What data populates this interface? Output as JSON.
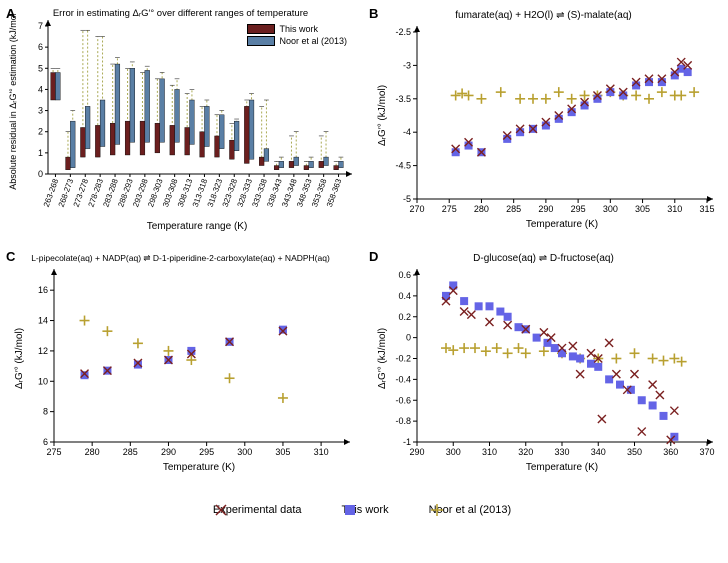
{
  "colors": {
    "this_work": "#6b1f1f",
    "noor": "#5a7fa5",
    "exp_x": "#7a1f1f",
    "this_sq": "#6464e6",
    "noor_plus": "#b8a030",
    "bg": "#ffffff",
    "axis": "#000000",
    "dash": "#aaaa55"
  },
  "fonts": {
    "title": 10,
    "panel_label": 13,
    "tick": 9,
    "axis_label": 10,
    "legend": 11
  },
  "panelA": {
    "title": "Error in estimating ΔᵣG′° over different ranges of temperature",
    "ylabel": "Absolute residual in ΔᵣG′° estimation (kJ/mol)",
    "xlabel": "Temperature range (K)",
    "categories": [
      "263-268",
      "268-273",
      "273-278",
      "278-283",
      "283-288",
      "288-293",
      "293-298",
      "298-303",
      "303-308",
      "308-313",
      "313-318",
      "318-323",
      "323-328",
      "328-333",
      "333-338",
      "338-343",
      "343-348",
      "348-353",
      "353-358",
      "358-363"
    ],
    "ylim": [
      0,
      7
    ],
    "ytick_step": 1,
    "this_work_box": {
      "q1": [
        3.5,
        0.2,
        0.8,
        0.8,
        0.9,
        0.9,
        0.9,
        1.0,
        0.9,
        0.9,
        0.8,
        0.8,
        0.7,
        0.5,
        0.4,
        0.2,
        0.3,
        0.2,
        0.3,
        0.2
      ],
      "q3": [
        4.8,
        0.8,
        2.2,
        2.3,
        2.4,
        2.5,
        2.5,
        2.4,
        2.3,
        2.2,
        2.0,
        1.8,
        1.6,
        3.2,
        0.8,
        0.4,
        0.6,
        0.4,
        0.6,
        0.4
      ],
      "whisker_hi": [
        5.0,
        2.0,
        6.8,
        6.5,
        5.2,
        5.0,
        4.8,
        4.5,
        4.2,
        3.8,
        3.2,
        2.8,
        2.4,
        3.5,
        3.2,
        0.6,
        1.8,
        0.6,
        1.8,
        0.6
      ]
    },
    "noor_box": {
      "q1": [
        3.5,
        0.3,
        1.2,
        1.3,
        1.4,
        1.5,
        1.5,
        1.5,
        1.5,
        1.4,
        1.3,
        1.2,
        1.1,
        0.7,
        0.6,
        0.3,
        0.4,
        0.3,
        0.4,
        0.3
      ],
      "q3": [
        4.8,
        2.5,
        3.2,
        3.5,
        5.2,
        5.0,
        4.9,
        4.5,
        4.0,
        3.5,
        3.2,
        2.8,
        2.5,
        3.5,
        1.2,
        0.6,
        0.8,
        0.6,
        0.8,
        0.6
      ],
      "whisker_hi": [
        5.0,
        3.0,
        6.8,
        6.5,
        5.5,
        5.3,
        5.1,
        4.8,
        4.5,
        4.0,
        3.5,
        3.0,
        2.6,
        3.8,
        3.5,
        0.8,
        2.0,
        0.8,
        2.0,
        0.8
      ]
    },
    "legend": {
      "this_work": "This work",
      "noor": "Noor et al (2013)"
    }
  },
  "panelB": {
    "title": "fumarate(aq) + H2O(l) ⇌ (S)-malate(aq)",
    "ylabel": "ΔᵣG′° (kJ/mol)",
    "xlabel": "Temperature (K)",
    "xlim": [
      270,
      315
    ],
    "xtick_step": 5,
    "ylim": [
      -5.0,
      -2.5
    ],
    "ytick_step": 0.5,
    "exp": {
      "x": [
        276,
        278,
        280,
        284,
        286,
        288,
        290,
        292,
        294,
        296,
        298,
        300,
        302,
        304,
        306,
        308,
        310,
        311,
        312
      ],
      "y": [
        -4.25,
        -4.15,
        -4.3,
        -4.05,
        -3.95,
        -3.95,
        -3.85,
        -3.75,
        -3.65,
        -3.55,
        -3.45,
        -3.35,
        -3.4,
        -3.25,
        -3.2,
        -3.2,
        -3.1,
        -2.95,
        -3.0
      ]
    },
    "this": {
      "x": [
        276,
        278,
        280,
        284,
        286,
        288,
        290,
        292,
        294,
        296,
        298,
        300,
        302,
        304,
        306,
        308,
        310,
        311,
        312
      ],
      "y": [
        -4.3,
        -4.2,
        -4.3,
        -4.1,
        -4.0,
        -3.95,
        -3.9,
        -3.8,
        -3.7,
        -3.6,
        -3.5,
        -3.4,
        -3.45,
        -3.3,
        -3.25,
        -3.25,
        -3.15,
        -3.05,
        -3.1
      ]
    },
    "noor": {
      "x": [
        276,
        277,
        278,
        280,
        283,
        286,
        288,
        290,
        292,
        294,
        296,
        298,
        300,
        302,
        304,
        306,
        308,
        310,
        311,
        313
      ],
      "y": [
        -3.45,
        -3.42,
        -3.45,
        -3.5,
        -3.4,
        -3.5,
        -3.5,
        -3.5,
        -3.4,
        -3.5,
        -3.45,
        -3.45,
        -3.4,
        -3.45,
        -3.45,
        -3.5,
        -3.4,
        -3.45,
        -3.45,
        -3.4
      ]
    }
  },
  "panelC": {
    "title": "L-pipecolate(aq) + NADP(aq) ⇌ D-1-piperidine-2-carboxylate(aq) + NADPH(aq)",
    "ylabel": "ΔᵣG′° (kJ/mol)",
    "xlabel": "Temperature (K)",
    "xlim": [
      275,
      313
    ],
    "xticks": [
      275,
      280,
      285,
      290,
      295,
      300,
      305,
      310
    ],
    "ylim": [
      6,
      17
    ],
    "yticks": [
      6,
      8,
      10,
      12,
      14,
      16
    ],
    "exp": {
      "x": [
        279,
        282,
        286,
        290,
        293,
        298,
        305
      ],
      "y": [
        10.5,
        10.7,
        11.2,
        11.4,
        11.8,
        12.6,
        13.3
      ]
    },
    "this": {
      "x": [
        279,
        282,
        286,
        290,
        293,
        298,
        305
      ],
      "y": [
        10.4,
        10.7,
        11.1,
        11.4,
        12.0,
        12.6,
        13.4
      ]
    },
    "noor": {
      "x": [
        279,
        282,
        286,
        290,
        293,
        298,
        305
      ],
      "y": [
        14.0,
        13.3,
        12.5,
        12.0,
        11.4,
        10.2,
        8.9
      ]
    }
  },
  "panelD": {
    "title": "D-glucose(aq) ⇌ D-fructose(aq)",
    "ylabel": "ΔᵣG′° (kJ/mol)",
    "xlabel": "Temperature (K)",
    "xlim": [
      290,
      370
    ],
    "xtick_step": 10,
    "ylim": [
      -1.0,
      0.6
    ],
    "ytick_step": 0.2,
    "exp": {
      "x": [
        298,
        300,
        303,
        305,
        310,
        315,
        320,
        325,
        327,
        330,
        333,
        335,
        338,
        340,
        341,
        343,
        345,
        348,
        350,
        352,
        355,
        357,
        360,
        361
      ],
      "y": [
        0.35,
        0.45,
        0.25,
        0.22,
        0.15,
        0.12,
        0.08,
        0.05,
        0.0,
        -0.1,
        -0.08,
        -0.35,
        -0.15,
        -0.2,
        -0.78,
        -0.05,
        -0.35,
        -0.5,
        -0.35,
        -0.9,
        -0.45,
        -0.55,
        -0.98,
        -0.7
      ]
    },
    "this": {
      "x": [
        298,
        300,
        303,
        307,
        310,
        313,
        315,
        318,
        320,
        323,
        326,
        328,
        330,
        333,
        335,
        338,
        340,
        343,
        346,
        349,
        352,
        355,
        358,
        361
      ],
      "y": [
        0.4,
        0.5,
        0.35,
        0.3,
        0.3,
        0.25,
        0.2,
        0.1,
        0.08,
        0.0,
        -0.05,
        -0.1,
        -0.15,
        -0.18,
        -0.2,
        -0.25,
        -0.28,
        -0.4,
        -0.45,
        -0.5,
        -0.6,
        -0.65,
        -0.75,
        -0.95
      ]
    },
    "noor": {
      "x": [
        298,
        300,
        303,
        306,
        309,
        312,
        315,
        318,
        320,
        325,
        330,
        335,
        340,
        345,
        350,
        355,
        358,
        361,
        363
      ],
      "y": [
        -0.1,
        -0.12,
        -0.1,
        -0.1,
        -0.13,
        -0.1,
        -0.15,
        -0.1,
        -0.15,
        -0.13,
        -0.15,
        -0.2,
        -0.2,
        -0.2,
        -0.15,
        -0.2,
        -0.22,
        -0.2,
        -0.23
      ]
    }
  },
  "legend": {
    "exp": "Experimental data",
    "this": "This work",
    "noor": "Noor et al (2013)"
  }
}
